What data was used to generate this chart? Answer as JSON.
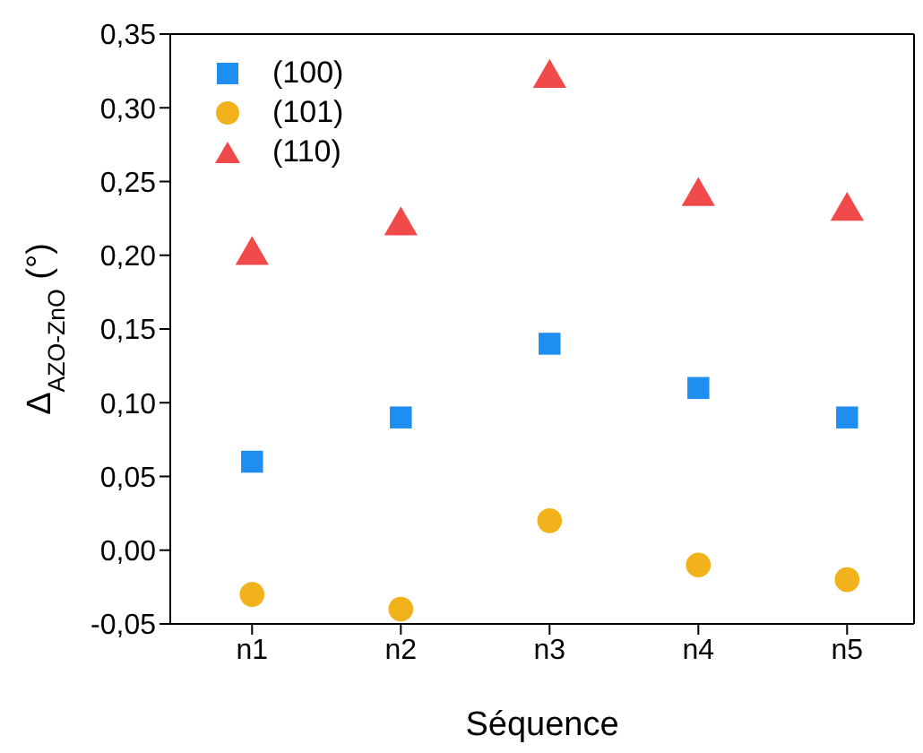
{
  "chart_data": {
    "type": "scatter",
    "xlabel": "Séquence",
    "ylabel": "Δ$_{AZO-ZnO}$ (°)",
    "categories": [
      "n1",
      "n2",
      "n3",
      "n4",
      "n5"
    ],
    "series": [
      {
        "name": "(100)",
        "color": "#1f8ef1",
        "marker": "square",
        "values": [
          0.06,
          0.09,
          0.14,
          0.11,
          0.09
        ]
      },
      {
        "name": "(101)",
        "color": "#f2b21b",
        "marker": "circle",
        "values": [
          -0.03,
          -0.04,
          0.02,
          -0.01,
          -0.02
        ]
      },
      {
        "name": "(110)",
        "color": "#f04a4a",
        "marker": "triangle",
        "values": [
          0.2,
          0.22,
          0.32,
          0.24,
          0.23
        ]
      }
    ],
    "ylim": [
      -0.05,
      0.35
    ],
    "yticks": [
      {
        "value": -0.05,
        "label": "-0,05"
      },
      {
        "value": 0,
        "label": "0,00"
      },
      {
        "value": 0.05,
        "label": "0,05"
      },
      {
        "value": 0.1,
        "label": "0,10"
      },
      {
        "value": 0.15,
        "label": "0,15"
      },
      {
        "value": 0.2,
        "label": "0,20"
      },
      {
        "value": 0.25,
        "label": "0,25"
      },
      {
        "value": 0.3,
        "label": "0,30"
      },
      {
        "value": 0.35,
        "label": "0,35"
      }
    ],
    "legend": "top left"
  }
}
